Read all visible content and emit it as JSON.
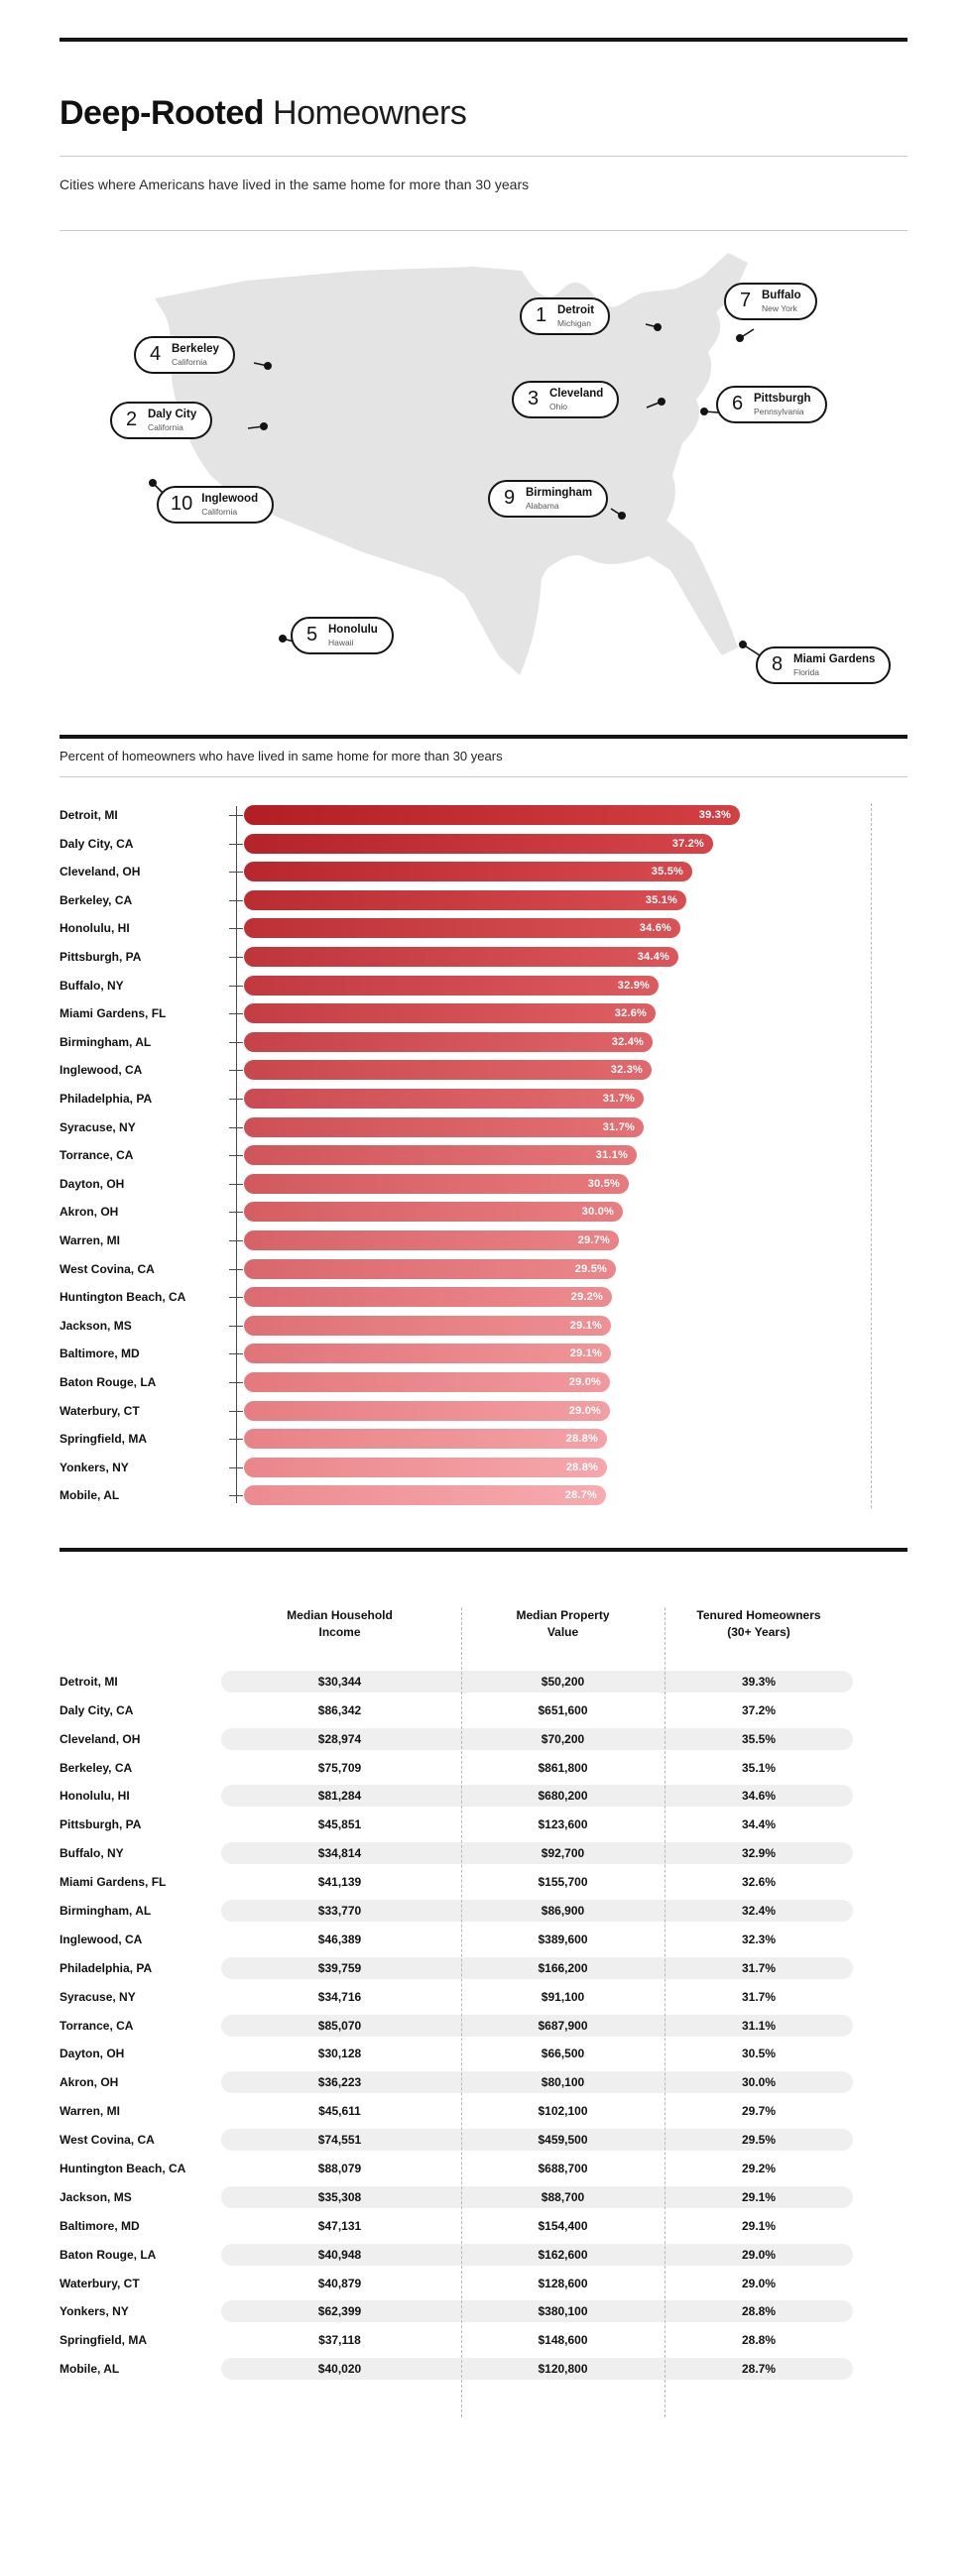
{
  "header": {
    "title_bold": "Deep-Rooted",
    "title_regular": "Homeowners",
    "subtitle": "Cities where Americans have lived in the same home for more than 30 years"
  },
  "map": {
    "callouts": [
      {
        "rank": "1",
        "city": "Detroit",
        "state": "Michigan"
      },
      {
        "rank": "2",
        "city": "Daly City",
        "state": "California"
      },
      {
        "rank": "3",
        "city": "Cleveland",
        "state": "Ohio"
      },
      {
        "rank": "4",
        "city": "Berkeley",
        "state": "California"
      },
      {
        "rank": "5",
        "city": "Honolulu",
        "state": "Hawaii"
      },
      {
        "rank": "6",
        "city": "Pittsburgh",
        "state": "Pennsylvania"
      },
      {
        "rank": "7",
        "city": "Buffalo",
        "state": "New York"
      },
      {
        "rank": "8",
        "city": "Miami Gardens",
        "state": "Florida"
      },
      {
        "rank": "9",
        "city": "Birmingham",
        "state": "Alabama"
      },
      {
        "rank": "10",
        "city": "Inglewood",
        "state": "California"
      }
    ]
  },
  "chart": {
    "caption": "Percent of homeowners who have lived in same home for more than 30 years"
  },
  "chart_data": {
    "type": "bar",
    "orientation": "horizontal",
    "title": "Percent of homeowners who have lived in same home for more than 30 years",
    "xlabel": "",
    "ylabel": "",
    "xlim": [
      0,
      40
    ],
    "gridlines": false,
    "legend_position": "none",
    "value_suffix": "%",
    "bar_color_start": "#b21e24",
    "bar_color_end": "#f7abaf",
    "categories": [
      "Detroit, MI",
      "Daly City, CA",
      "Cleveland, OH",
      "Berkeley, CA",
      "Honolulu, HI",
      "Pittsburgh, PA",
      "Buffalo, NY",
      "Miami Gardens, FL",
      "Birmingham, AL",
      "Inglewood, CA",
      "Philadelphia, PA",
      "Syracuse, NY",
      "Torrance, CA",
      "Dayton, OH",
      "Akron, OH",
      "Warren, MI",
      "West Covina, CA",
      "Huntington Beach, CA",
      "Jackson, MS",
      "Baltimore, MD",
      "Baton Rouge, LA",
      "Waterbury, CT",
      "Springfield, MA",
      "Yonkers, NY",
      "Mobile, AL"
    ],
    "values": [
      39.3,
      37.2,
      35.5,
      35.1,
      34.6,
      34.4,
      32.9,
      32.6,
      32.4,
      32.3,
      31.7,
      31.7,
      31.1,
      30.5,
      30.0,
      29.7,
      29.5,
      29.2,
      29.1,
      29.1,
      29.0,
      29.0,
      28.8,
      28.8,
      28.7
    ]
  },
  "table": {
    "columns": [
      "Median Household Income",
      "Median Property Value",
      "Tenured Homeowners (30+ Years)"
    ],
    "rows": [
      {
        "city": "Detroit, MI",
        "income": "$30,344",
        "property": "$50,200",
        "tenure": "39.3%"
      },
      {
        "city": "Daly City, CA",
        "income": "$86,342",
        "property": "$651,600",
        "tenure": "37.2%"
      },
      {
        "city": "Cleveland, OH",
        "income": "$28,974",
        "property": "$70,200",
        "tenure": "35.5%"
      },
      {
        "city": "Berkeley, CA",
        "income": "$75,709",
        "property": "$861,800",
        "tenure": "35.1%"
      },
      {
        "city": "Honolulu, HI",
        "income": "$81,284",
        "property": "$680,200",
        "tenure": "34.6%"
      },
      {
        "city": "Pittsburgh, PA",
        "income": "$45,851",
        "property": "$123,600",
        "tenure": "34.4%"
      },
      {
        "city": "Buffalo, NY",
        "income": "$34,814",
        "property": "$92,700",
        "tenure": "32.9%"
      },
      {
        "city": "Miami Gardens, FL",
        "income": "$41,139",
        "property": "$155,700",
        "tenure": "32.6%"
      },
      {
        "city": "Birmingham, AL",
        "income": "$33,770",
        "property": "$86,900",
        "tenure": "32.4%"
      },
      {
        "city": "Inglewood, CA",
        "income": "$46,389",
        "property": "$389,600",
        "tenure": "32.3%"
      },
      {
        "city": "Philadelphia, PA",
        "income": "$39,759",
        "property": "$166,200",
        "tenure": "31.7%"
      },
      {
        "city": "Syracuse, NY",
        "income": "$34,716",
        "property": "$91,100",
        "tenure": "31.7%"
      },
      {
        "city": "Torrance, CA",
        "income": "$85,070",
        "property": "$687,900",
        "tenure": "31.1%"
      },
      {
        "city": "Dayton, OH",
        "income": "$30,128",
        "property": "$66,500",
        "tenure": "30.5%"
      },
      {
        "city": "Akron, OH",
        "income": "$36,223",
        "property": "$80,100",
        "tenure": "30.0%"
      },
      {
        "city": "Warren, MI",
        "income": "$45,611",
        "property": "$102,100",
        "tenure": "29.7%"
      },
      {
        "city": "West Covina, CA",
        "income": "$74,551",
        "property": "$459,500",
        "tenure": "29.5%"
      },
      {
        "city": "Huntington Beach, CA",
        "income": "$88,079",
        "property": "$688,700",
        "tenure": "29.2%"
      },
      {
        "city": "Jackson, MS",
        "income": "$35,308",
        "property": "$88,700",
        "tenure": "29.1%"
      },
      {
        "city": "Baltimore, MD",
        "income": "$47,131",
        "property": "$154,400",
        "tenure": "29.1%"
      },
      {
        "city": "Baton Rouge, LA",
        "income": "$40,948",
        "property": "$162,600",
        "tenure": "29.0%"
      },
      {
        "city": "Waterbury, CT",
        "income": "$40,879",
        "property": "$128,600",
        "tenure": "29.0%"
      },
      {
        "city": "Yonkers, NY",
        "income": "$62,399",
        "property": "$380,100",
        "tenure": "28.8%"
      },
      {
        "city": "Springfield, MA",
        "income": "$37,118",
        "property": "$148,600",
        "tenure": "28.8%"
      },
      {
        "city": "Mobile, AL",
        "income": "$40,020",
        "property": "$120,800",
        "tenure": "28.7%"
      }
    ]
  },
  "colors": {
    "map_fill": "#e4e4e4",
    "band_gray": "#efefef",
    "rule_dark": "#141414"
  }
}
